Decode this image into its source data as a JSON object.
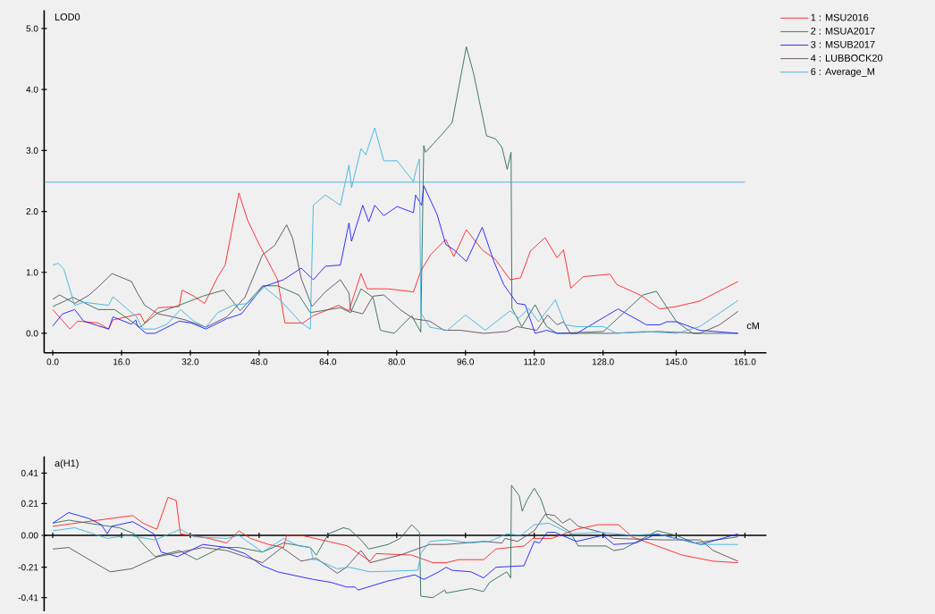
{
  "chart_data": [
    {
      "type": "line",
      "ylabel": "LOD0",
      "xlabel": "cM",
      "legend": "top right",
      "xlim": [
        -2,
        166
      ],
      "ylim": [
        -0.32,
        5.3
      ],
      "xticks": [
        {
          "value": 0,
          "label": "0.0"
        },
        {
          "value": 16,
          "label": "16.0"
        },
        {
          "value": 32,
          "label": "32.0"
        },
        {
          "value": 48,
          "label": "48.0"
        },
        {
          "value": 64,
          "label": "64.0"
        },
        {
          "value": 80,
          "label": "80.0"
        },
        {
          "value": 96,
          "label": "96.0"
        },
        {
          "value": 112,
          "label": "112.0"
        },
        {
          "value": 128,
          "label": "128.0"
        },
        {
          "value": 145,
          "label": "145.0"
        },
        {
          "value": 161,
          "label": "161.0"
        }
      ],
      "yticks": [
        {
          "value": 0,
          "label": "0.0"
        },
        {
          "value": 1,
          "label": "1.0"
        },
        {
          "value": 2,
          "label": "2.0"
        },
        {
          "value": 3,
          "label": "3.0"
        },
        {
          "value": 4,
          "label": "4.0"
        },
        {
          "value": 5,
          "label": "5.0"
        }
      ],
      "ref_lines": [
        {
          "axis": "y",
          "value": 2.48,
          "color": "#3cb4e0"
        }
      ],
      "series": [
        {
          "name": "1 : MSU2016",
          "color": "#ff2020",
          "x": [
            0,
            4,
            5.8,
            10.6,
            13,
            14,
            20.3,
            21.4,
            24.5,
            29.4,
            30.1,
            32.8,
            35.3,
            38.4,
            40.1,
            43.3,
            45.3,
            47.8,
            52.3,
            54,
            58.2,
            60.6,
            66.5,
            68.9,
            71.7,
            73.1,
            78,
            83.9,
            85.6,
            87.9,
            91.4,
            93.3,
            96.2,
            99.9,
            103,
            106.4,
            108.8,
            111.1,
            114.5,
            117.3,
            118.8,
            120.5,
            123.4,
            129.6,
            131.2,
            136.6,
            141.2,
            145.1,
            150.5,
            159.4
          ],
          "values": [
            0.39,
            0.07,
            0.2,
            0.17,
            0.07,
            0.22,
            0.32,
            0.17,
            0.42,
            0.44,
            0.71,
            0.61,
            0.49,
            0.93,
            1.12,
            2.3,
            1.86,
            1.49,
            0.88,
            0.17,
            0.17,
            0.29,
            0.46,
            0.37,
            0.98,
            0.73,
            0.73,
            0.68,
            1.02,
            1.29,
            1.54,
            1.26,
            1.7,
            1.37,
            1.21,
            0.88,
            0.91,
            1.35,
            1.57,
            1.24,
            1.37,
            0.74,
            0.93,
            0.97,
            0.8,
            0.63,
            0.4,
            0.44,
            0.53,
            0.85
          ]
        },
        {
          "name": "2 : MSUA2017",
          "color": "#2e6b55",
          "x": [
            0,
            4.7,
            10.6,
            14.4,
            20.3,
            24.5,
            29.4,
            34.9,
            39.8,
            43.6,
            48.8,
            52.3,
            57.2,
            59.9,
            66.9,
            69.3,
            71.7,
            74.5,
            76.2,
            79.4,
            83.5,
            85.6,
            86.3,
            86.7,
            90.6,
            92.9,
            96.2,
            97.9,
            100.9,
            103,
            104.5,
            105.7,
            106.6,
            106.8,
            109.1,
            112.2,
            114.9,
            117.3,
            128.1,
            137.3,
            140.4,
            145.1,
            148.9,
            159.4
          ],
          "values": [
            0.44,
            0.59,
            0.39,
            0.39,
            0.1,
            0.34,
            0.46,
            0.61,
            0.71,
            0.37,
            0.78,
            0.78,
            0.63,
            0.34,
            0.42,
            0.34,
            0.73,
            0.59,
            0.05,
            0,
            0.29,
            0.02,
            3.08,
            2.97,
            3.27,
            3.46,
            4.7,
            4.26,
            3.24,
            3.19,
            3.05,
            2.69,
            2.97,
            0.41,
            0.11,
            0.47,
            0.11,
            0,
            0.03,
            0.63,
            0.69,
            0.19,
            0,
            0
          ]
        },
        {
          "name": "3 : MSUB2017",
          "color": "#1a1aff",
          "x": [
            0,
            2.3,
            5.1,
            7.2,
            13,
            14,
            18.3,
            19.3,
            19.7,
            21.7,
            23.8,
            29.4,
            32.2,
            35.6,
            40.5,
            43.9,
            48.8,
            53.7,
            57.8,
            60.6,
            63.4,
            66.9,
            68.9,
            69.5,
            72.1,
            73.5,
            74.9,
            77,
            80.1,
            83.9,
            84.4,
            85.8,
            86.3,
            89.4,
            91.4,
            93.3,
            96.2,
            99.9,
            102.6,
            104.9,
            108,
            109.9,
            112.2,
            114.9,
            117.3,
            121.9,
            131.5,
            138.1,
            141.2,
            142.8,
            145.1,
            150.5,
            159.4
          ],
          "values": [
            0.12,
            0.32,
            0.39,
            0.2,
            0.07,
            0.27,
            0.15,
            0.22,
            0.12,
            0,
            0,
            0.2,
            0.17,
            0.07,
            0.24,
            0.32,
            0.76,
            0.88,
            1.07,
            0.88,
            1.1,
            1.12,
            1.81,
            1.51,
            2.1,
            1.83,
            2.1,
            1.93,
            2.08,
            1.98,
            2.27,
            2.1,
            2.42,
            1.95,
            1.46,
            1.37,
            1.18,
            1.74,
            1.18,
            0.8,
            0.49,
            0.47,
            0,
            0.05,
            0,
            0,
            0.4,
            0.14,
            0.14,
            0.19,
            0.19,
            0.05,
            0
          ]
        },
        {
          "name": "4 : LUBBOCK20",
          "color": "#5c4a5e",
          "x": [
            0,
            1.6,
            5.1,
            8.5,
            11.3,
            13.8,
            18.3,
            19.7,
            21.4,
            24.5,
            28,
            30.8,
            35.6,
            40.5,
            44.7,
            48.8,
            51.6,
            54.4,
            55.8,
            57.8,
            60.3,
            63.4,
            66.9,
            68.9,
            69.3,
            72.1,
            74.5,
            77,
            80.8,
            83.9,
            87.7,
            91,
            94.8,
            100.3,
            105.7,
            108,
            112.6,
            115.1,
            117.3,
            118.8,
            120.4,
            129.6,
            140.8,
            150.5,
            155.1,
            159.4
          ],
          "values": [
            0.56,
            0.63,
            0.49,
            0.63,
            0.81,
            0.98,
            0.85,
            0.66,
            0.46,
            0.32,
            0.27,
            0.22,
            0.1,
            0.27,
            0.59,
            1.29,
            1.44,
            1.78,
            1.56,
            0.9,
            0.44,
            0.68,
            0.88,
            0.66,
            0.37,
            0.32,
            0.61,
            0.63,
            0.39,
            0.24,
            0.2,
            0.05,
            0.05,
            0,
            0.03,
            0.11,
            0.05,
            0.3,
            0.14,
            0.19,
            0,
            0,
            0.03,
            0,
            0.14,
            0.36
          ]
        },
        {
          "name": "6 : Average_M",
          "color": "#3cb4e0",
          "x": [
            0,
            1.3,
            2.6,
            5.1,
            7.2,
            13,
            14,
            18.3,
            19.3,
            21,
            23.8,
            26.6,
            29.7,
            32.8,
            35.6,
            38.4,
            41.9,
            45.3,
            49.2,
            53,
            57.8,
            59.9,
            60.6,
            63.4,
            66.9,
            68.9,
            69.5,
            71.7,
            72.8,
            74.9,
            77,
            80.1,
            83.9,
            84.6,
            85.3,
            85.6,
            87.7,
            91.8,
            96,
            100.6,
            106.4,
            108.4,
            110.7,
            113,
            116.9,
            119.2,
            121.9,
            128.1,
            131.2,
            137.3,
            145.1,
            150.5,
            159.4
          ],
          "values": [
            1.12,
            1.15,
            1.05,
            0.46,
            0.51,
            0.46,
            0.6,
            0.34,
            0.29,
            0.07,
            0.07,
            0.15,
            0.39,
            0.2,
            0.1,
            0.34,
            0.46,
            0.49,
            0.76,
            0.54,
            0.17,
            0.07,
            2.1,
            2.27,
            2.1,
            2.76,
            2.39,
            3.03,
            2.93,
            3.37,
            2.83,
            2.83,
            2.49,
            2.71,
            2.86,
            0.34,
            0.1,
            0.05,
            0.3,
            0.05,
            0.37,
            0.25,
            0.41,
            0.19,
            0.55,
            0.14,
            0.11,
            0.11,
            0,
            0.03,
            0,
            0.11,
            0.54
          ]
        }
      ]
    },
    {
      "type": "line",
      "ylabel": "a(H1)",
      "tick_labels": "y",
      "xlim": [
        -2,
        166
      ],
      "ylim": [
        -0.5,
        0.52
      ],
      "xticks": [
        {
          "value": 0,
          "label": null
        },
        {
          "value": 16,
          "label": null
        },
        {
          "value": 32,
          "label": null
        },
        {
          "value": 48,
          "label": null
        },
        {
          "value": 64,
          "label": null
        },
        {
          "value": 80,
          "label": null
        },
        {
          "value": 96,
          "label": null
        },
        {
          "value": 112,
          "label": null
        },
        {
          "value": 128,
          "label": null
        },
        {
          "value": 145,
          "label": null
        },
        {
          "value": 161,
          "label": null
        }
      ],
      "yticks": [
        -0.41,
        -0.21,
        {
          "value": 0,
          "label": "0.00"
        },
        0.21,
        0.41
      ],
      "series": [
        {
          "color": "#ff2020",
          "x": [
            0,
            10.6,
            18.6,
            21,
            24.2,
            26.8,
            28.7,
            29.7,
            36.3,
            40.5,
            43.3,
            46,
            50.2,
            53.7,
            54.4,
            57.8,
            64.1,
            68.6,
            73.8,
            75.2,
            83.5,
            88.4,
            91.5,
            94.4,
            100.2,
            103.1,
            109.6,
            111.7,
            116.1,
            121.8,
            126.9,
            131.6,
            134.8,
            140.6,
            146.4,
            153.6,
            159.4
          ],
          "values": [
            0.06,
            0.1,
            0.13,
            0.08,
            0.04,
            0.25,
            0.23,
            0.01,
            -0.02,
            -0.05,
            0.03,
            -0.02,
            -0.06,
            -0.08,
            0,
            0,
            -0.04,
            -0.07,
            -0.17,
            -0.12,
            -0.13,
            -0.18,
            -0.18,
            -0.16,
            -0.16,
            -0.09,
            -0.07,
            -0.02,
            -0.02,
            0.04,
            0.07,
            0.07,
            -0.01,
            -0.07,
            -0.13,
            -0.17,
            -0.18
          ]
        },
        {
          "color": "#2e6b55",
          "x": [
            0,
            3.7,
            10.6,
            15.5,
            19,
            21.4,
            23.8,
            29.4,
            33.5,
            39.1,
            43.3,
            48.8,
            53.7,
            59.9,
            61.3,
            64.1,
            67.6,
            69,
            71.7,
            73.5,
            78,
            80.8,
            83.5,
            85.3,
            85.6,
            88.4,
            91.2,
            91.5,
            97.3,
            100.2,
            101.6,
            105.6,
            106.5,
            106.7,
            108.5,
            109.2,
            110.3,
            112,
            113.5,
            115,
            120.4,
            122.2,
            128.7,
            130.5,
            132.7,
            140.6,
            145,
            149.3,
            159.4
          ],
          "values": [
            0.08,
            0.1,
            0.07,
            0.05,
            0.01,
            -0.07,
            -0.14,
            -0.1,
            -0.16,
            -0.08,
            -0.08,
            -0.11,
            -0.05,
            -0.08,
            -0.13,
            0.01,
            0.05,
            0.04,
            -0.03,
            -0.09,
            -0.06,
            -0.02,
            0.07,
            0.02,
            -0.4,
            -0.41,
            -0.36,
            -0.38,
            -0.35,
            -0.37,
            -0.31,
            -0.24,
            -0.28,
            0.33,
            0.26,
            0.16,
            0.23,
            0.31,
            0.24,
            0.12,
            0.02,
            -0.07,
            -0.07,
            -0.1,
            -0.09,
            0.03,
            0,
            -0.05,
            -0.01
          ]
        },
        {
          "color": "#1a1aff",
          "x": [
            0,
            3.7,
            8.5,
            11.3,
            12.7,
            13.7,
            18.6,
            23.5,
            25.2,
            29,
            34.9,
            40.5,
            44.7,
            48.8,
            52.3,
            57.2,
            60.6,
            64.8,
            68.3,
            70.3,
            71,
            74.5,
            78,
            84.2,
            86.3,
            89.8,
            91.5,
            92.9,
            97.3,
            100.2,
            103.1,
            109.6,
            112,
            113.2,
            115,
            116.8,
            121.8,
            128,
            130.5,
            135.6,
            140.6,
            147.8,
            150.7,
            159.4
          ],
          "values": [
            0.08,
            0.15,
            0.11,
            0.07,
            0.01,
            0.06,
            0.09,
            0.01,
            -0.11,
            -0.14,
            -0.06,
            -0.08,
            -0.12,
            -0.2,
            -0.24,
            -0.27,
            -0.29,
            -0.31,
            -0.34,
            -0.34,
            -0.36,
            -0.33,
            -0.3,
            -0.26,
            -0.29,
            -0.24,
            -0.21,
            -0.23,
            -0.24,
            -0.28,
            -0.21,
            -0.2,
            -0.04,
            -0.05,
            0.02,
            0.02,
            -0.04,
            0,
            -0.06,
            -0.05,
            0.01,
            -0.04,
            -0.06,
            0.01
          ]
        },
        {
          "color": "#5c4a5e",
          "x": [
            0,
            3.7,
            8.5,
            13.4,
            18.3,
            24.5,
            34.9,
            40.5,
            48.8,
            53.3,
            57.8,
            61.3,
            66.2,
            68.3,
            71.7,
            73.8,
            80.8,
            87.7,
            91.5,
            100.2,
            104.5,
            105.2,
            108.1,
            112,
            114.6,
            116.8,
            118.6,
            120.3,
            122.2,
            127.6,
            130.5,
            142.1,
            150.7,
            153.6,
            159.4
          ],
          "values": [
            -0.09,
            -0.08,
            -0.16,
            -0.24,
            -0.22,
            -0.14,
            -0.08,
            -0.1,
            -0.18,
            -0.08,
            -0.17,
            -0.15,
            -0.25,
            -0.21,
            -0.1,
            -0.18,
            -0.13,
            -0.06,
            -0.06,
            -0.04,
            -0.05,
            -0.02,
            -0.04,
            0.03,
            0.14,
            0.13,
            0.08,
            0.11,
            0.06,
            0.02,
            -0.02,
            -0.03,
            -0.03,
            -0.1,
            -0.17
          ]
        },
        {
          "color": "#3cb4e0",
          "x": [
            0,
            5.1,
            12.7,
            17.6,
            23.8,
            29.7,
            32.8,
            40.5,
            43.3,
            48.8,
            53.7,
            57.2,
            59.9,
            60.6,
            61.3,
            66.2,
            69,
            73.8,
            84.9,
            85.6,
            87.7,
            91.5,
            97.3,
            101.6,
            105.6,
            108.9,
            112,
            115.4,
            120.4,
            127.6,
            134.8,
            140.6,
            150.7,
            159.4
          ],
          "values": [
            0.03,
            0.05,
            -0.02,
            0,
            -0.03,
            0.04,
            -0.01,
            -0.02,
            0,
            -0.11,
            -0.02,
            -0.07,
            -0.08,
            -0.16,
            -0.16,
            -0.22,
            -0.21,
            -0.24,
            -0.23,
            -0.12,
            -0.04,
            -0.03,
            -0.05,
            -0.04,
            0.01,
            0,
            0.07,
            0.08,
            0.01,
            0.02,
            0,
            0.01,
            -0.06,
            -0.06
          ]
        }
      ]
    }
  ]
}
